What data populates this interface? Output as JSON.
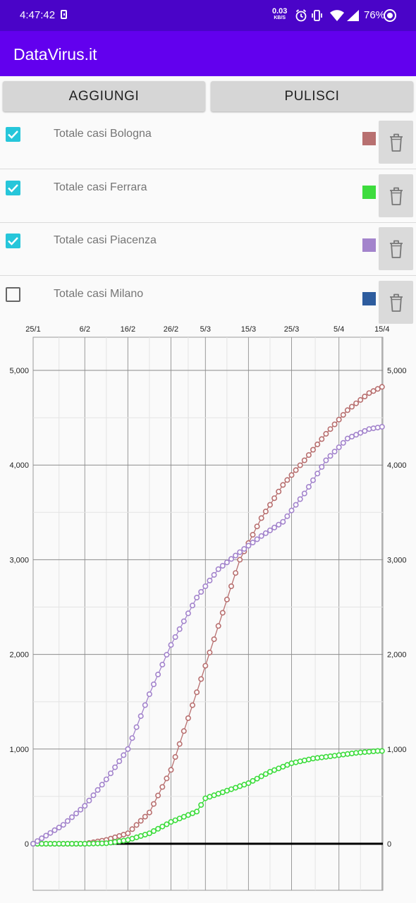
{
  "status_bar": {
    "time": "4:47:42",
    "net_speed": "0.03",
    "net_unit": "KB/S",
    "battery": "76%"
  },
  "app_title": "DataVirus.it",
  "buttons": {
    "add": "AGGIUNGI",
    "clear": "PULISCI"
  },
  "series_list": [
    {
      "label": "Totale casi Bologna",
      "checked": true,
      "color": "#b87070"
    },
    {
      "label": "Totale casi Ferrara",
      "checked": true,
      "color": "#3ddc3d"
    },
    {
      "label": "Totale casi Piacenza",
      "checked": true,
      "color": "#a384cc"
    },
    {
      "label": "Totale casi Milano",
      "checked": false,
      "color": "#2d5c9e"
    }
  ],
  "chart_data": {
    "type": "line",
    "x_ticks": [
      "25/1",
      "6/2",
      "16/2",
      "26/2",
      "5/3",
      "15/3",
      "25/3",
      "5/4",
      "15/4"
    ],
    "y_ticks": [
      "0",
      "1,000",
      "2,000",
      "3,000",
      "4,000",
      "5,000"
    ],
    "ylim": [
      0,
      5000
    ],
    "grid": true,
    "series": [
      {
        "name": "Totale casi Bologna",
        "color": "#b87070",
        "x": [
          "25/1",
          "6/2",
          "11/2",
          "16/2",
          "21/2",
          "26/2",
          "3/3",
          "8/3",
          "13/3",
          "18/3",
          "23/3",
          "28/3",
          "2/4",
          "7/4",
          "12/4",
          "17/4"
        ],
        "values": [
          0,
          0,
          40,
          110,
          330,
          780,
          1600,
          2300,
          3000,
          3440,
          3790,
          4050,
          4330,
          4580,
          4760,
          4870
        ]
      },
      {
        "name": "Totale casi Ferrara",
        "color": "#3ddc3d",
        "x": [
          "25/1",
          "6/2",
          "11/2",
          "16/2",
          "21/2",
          "26/2",
          "3/3",
          "5/3",
          "10/3",
          "15/3",
          "20/3",
          "25/3",
          "30/3",
          "4/4",
          "9/4",
          "14/4",
          "17/4"
        ],
        "values": [
          0,
          0,
          5,
          40,
          110,
          230,
          340,
          480,
          560,
          640,
          760,
          850,
          900,
          930,
          960,
          980,
          980
        ]
      },
      {
        "name": "Totale casi Piacenza",
        "color": "#a384cc",
        "x": [
          "25/1",
          "1/2",
          "6/2",
          "11/2",
          "16/2",
          "21/2",
          "26/2",
          "3/3",
          "8/3",
          "13/3",
          "18/3",
          "23/3",
          "28/3",
          "2/4",
          "7/4",
          "12/4",
          "17/4"
        ],
        "values": [
          0,
          200,
          400,
          680,
          1000,
          1580,
          2100,
          2600,
          2900,
          3080,
          3250,
          3400,
          3700,
          4050,
          4280,
          4380,
          4420
        ]
      }
    ]
  }
}
